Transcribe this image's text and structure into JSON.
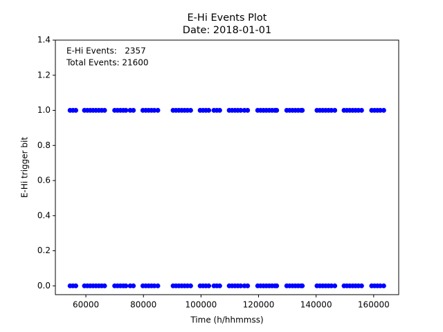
{
  "chart_data": {
    "type": "scatter",
    "title": "E-Hi Events Plot",
    "subtitle": "Date: 2018-01-01",
    "xlabel": "Time (h/hhmmss)",
    "ylabel": "E-Hi trigger bit",
    "annotations": [
      "E-Hi Events:   2357",
      "Total Events: 21600"
    ],
    "color": "#0000ff",
    "xlim": [
      49400,
      168700
    ],
    "ylim": [
      -0.05,
      1.4
    ],
    "xticks": [
      60000,
      80000,
      100000,
      120000,
      140000,
      160000
    ],
    "yticks": [
      {
        "value": 0,
        "label": "0.0"
      },
      0.2,
      0.4,
      0.6,
      0.8,
      {
        "value": 1,
        "label": "1.0"
      },
      1.2,
      1.4
    ],
    "x": [
      54500,
      55500,
      56500,
      59500,
      60500,
      61500,
      62500,
      63500,
      64500,
      65500,
      66500,
      70000,
      71000,
      72000,
      73000,
      73900,
      75400,
      76500,
      79800,
      80800,
      81800,
      82800,
      83800,
      85000,
      90300,
      91300,
      92300,
      93300,
      94300,
      95300,
      96400,
      99700,
      100700,
      101700,
      102700,
      104500,
      105500,
      106500,
      109800,
      110800,
      111800,
      112800,
      113800,
      115100,
      116200,
      119700,
      120700,
      121700,
      122700,
      123700,
      124700,
      125700,
      126300,
      129800,
      130800,
      131800,
      132800,
      133800,
      134800,
      135200,
      140300,
      141300,
      142300,
      143300,
      144300,
      145300,
      146500,
      149700,
      150700,
      151700,
      152700,
      153700,
      154700,
      155800,
      159300,
      160300,
      161300,
      162300,
      163500,
      54500,
      55500,
      56500,
      59500,
      60500,
      61500,
      62500,
      63500,
      64500,
      65500,
      66500,
      70000,
      71000,
      72000,
      73000,
      73900,
      75400,
      76500,
      79800,
      80800,
      81800,
      82800,
      83800,
      85000,
      90300,
      91300,
      92300,
      93300,
      94300,
      95300,
      96400,
      99700,
      100700,
      101700,
      102700,
      104500,
      105500,
      106500,
      109800,
      110800,
      111800,
      112800,
      113800,
      115100,
      116200,
      119700,
      120700,
      121700,
      122700,
      123700,
      124700,
      125700,
      126300,
      129800,
      130800,
      131800,
      132800,
      133800,
      134800,
      135200,
      140300,
      141300,
      142300,
      143300,
      144300,
      145300,
      146500,
      149700,
      150700,
      151700,
      152700,
      153700,
      154700,
      155800,
      159300,
      160300,
      161300,
      162300,
      163500
    ],
    "y": [
      1,
      1,
      1,
      1,
      1,
      1,
      1,
      1,
      1,
      1,
      1,
      1,
      1,
      1,
      1,
      1,
      1,
      1,
      1,
      1,
      1,
      1,
      1,
      1,
      1,
      1,
      1,
      1,
      1,
      1,
      1,
      1,
      1,
      1,
      1,
      1,
      1,
      1,
      1,
      1,
      1,
      1,
      1,
      1,
      1,
      1,
      1,
      1,
      1,
      1,
      1,
      1,
      1,
      1,
      1,
      1,
      1,
      1,
      1,
      1,
      1,
      1,
      1,
      1,
      1,
      1,
      1,
      1,
      1,
      1,
      1,
      1,
      1,
      1,
      1,
      1,
      1,
      1,
      1,
      0,
      0,
      0,
      0,
      0,
      0,
      0,
      0,
      0,
      0,
      0,
      0,
      0,
      0,
      0,
      0,
      0,
      0,
      0,
      0,
      0,
      0,
      0,
      0,
      0,
      0,
      0,
      0,
      0,
      0,
      0,
      0,
      0,
      0,
      0,
      0,
      0,
      0,
      0,
      0,
      0,
      0,
      0,
      0,
      0,
      0,
      0,
      0,
      0,
      0,
      0,
      0,
      0,
      0,
      0,
      0,
      0,
      0,
      0,
      0,
      0,
      0,
      0,
      0,
      0,
      0,
      0,
      0,
      0,
      0,
      0,
      0,
      0,
      0,
      0,
      0,
      0,
      0,
      0
    ]
  }
}
